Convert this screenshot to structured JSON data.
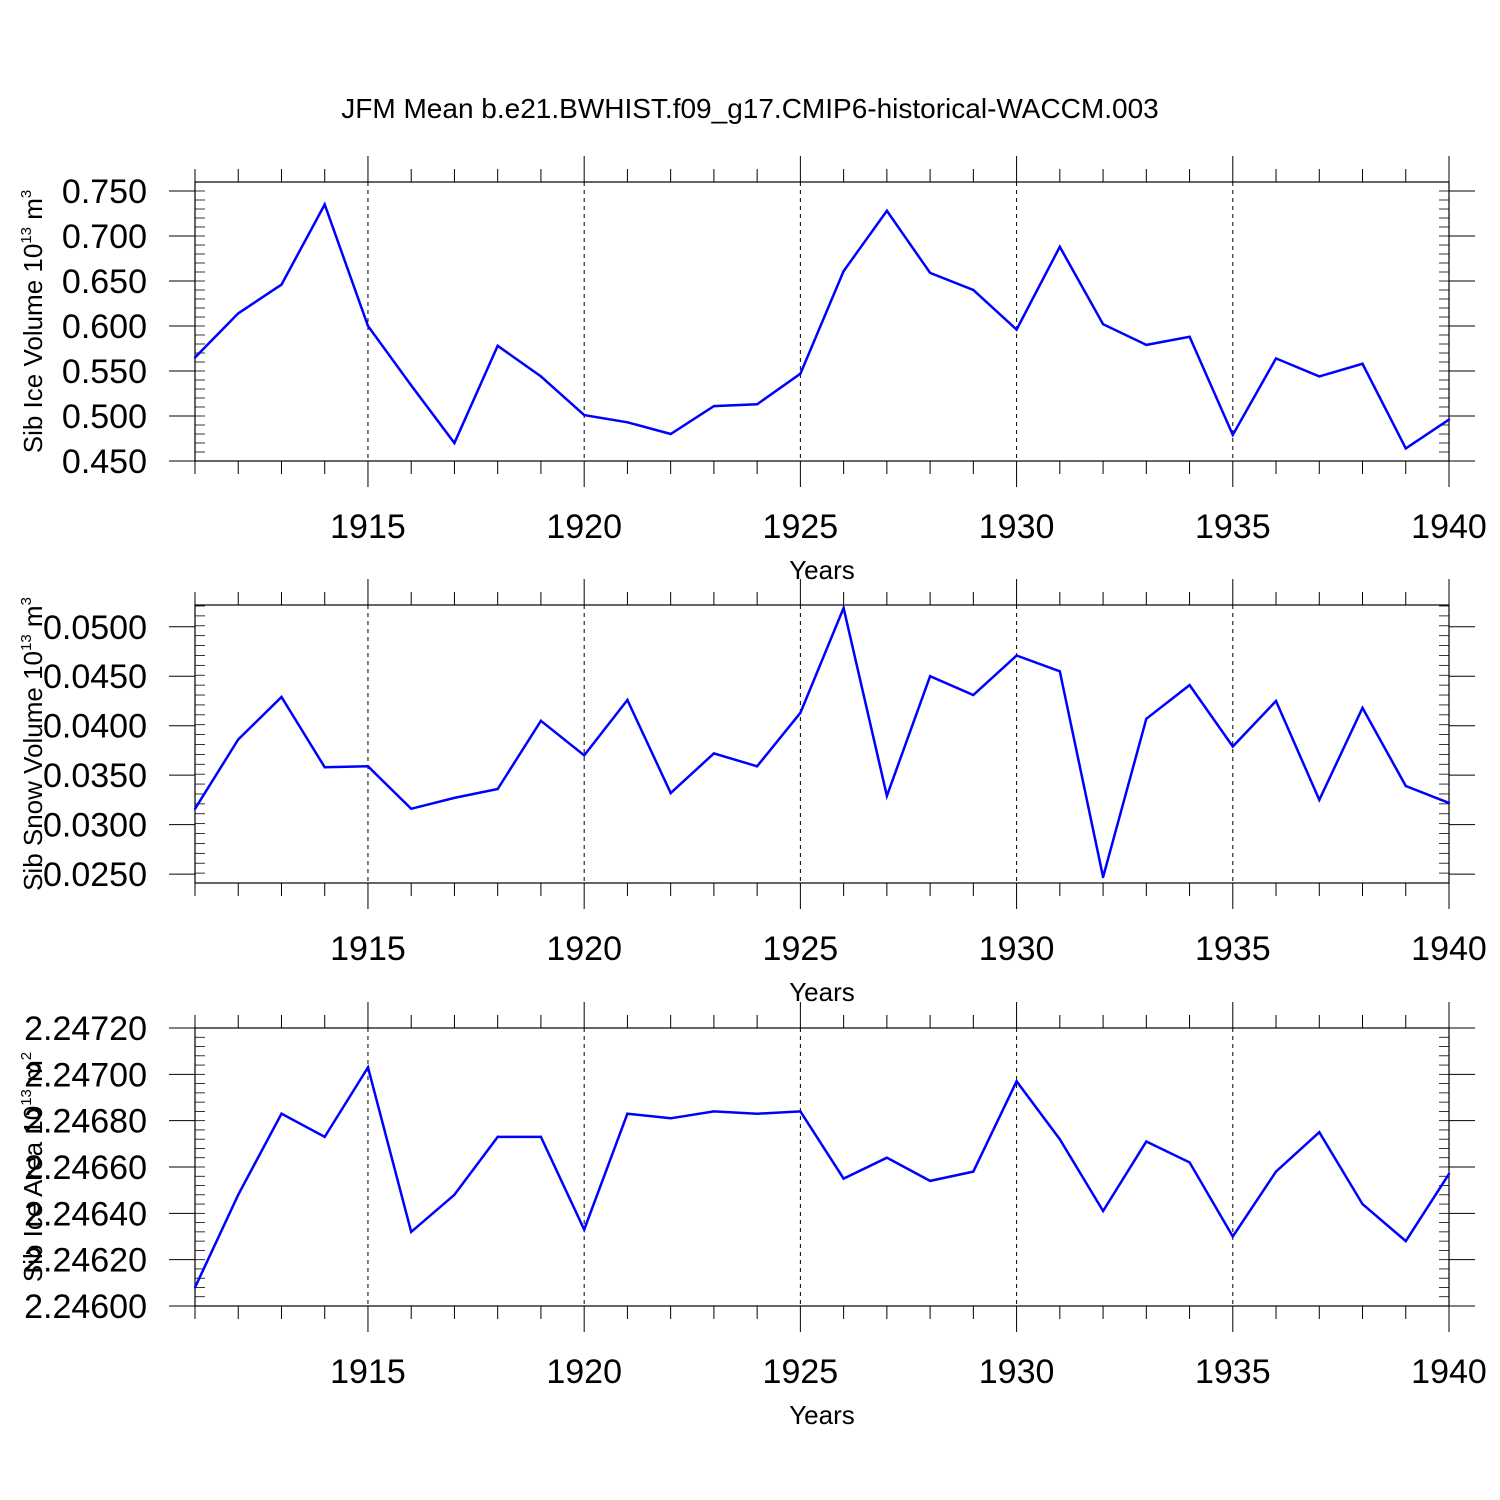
{
  "figure": {
    "title": "JFM Mean b.e21.BWHIST.f09_g17.CMIP6-historical-WACCM.003"
  },
  "chart_data": [
    {
      "type": "line",
      "title": "",
      "xlabel": "Years",
      "ylabel": "Sib Ice Volume 10",
      "ylabel_exp": "13",
      "ylabel_unit": "m",
      "ylabel_unit_exp": "3",
      "xlim": [
        1911,
        1940
      ],
      "ylim": [
        0.45,
        0.76
      ],
      "xticks": [
        1915,
        1920,
        1925,
        1930,
        1935,
        1940
      ],
      "yticks": [
        "0.450",
        "0.500",
        "0.550",
        "0.600",
        "0.650",
        "0.700",
        "0.750"
      ],
      "ytick_values": [
        0.45,
        0.5,
        0.55,
        0.6,
        0.65,
        0.7,
        0.75
      ],
      "ytick_minor_step": 0.01,
      "grid": "vertical dashed at major x ticks",
      "line_color": "#0000ff",
      "x": [
        1911,
        1912,
        1913,
        1914,
        1915,
        1916,
        1917,
        1918,
        1919,
        1920,
        1921,
        1922,
        1923,
        1924,
        1925,
        1926,
        1927,
        1928,
        1929,
        1930,
        1931,
        1932,
        1933,
        1934,
        1935,
        1936,
        1937,
        1938,
        1939,
        1940
      ],
      "values": [
        0.565,
        0.614,
        0.646,
        0.735,
        0.6,
        0.534,
        0.47,
        0.578,
        0.544,
        0.501,
        0.493,
        0.48,
        0.511,
        0.513,
        0.547,
        0.661,
        0.728,
        0.659,
        0.64,
        0.596,
        0.688,
        0.602,
        0.579,
        0.588,
        0.479,
        0.564,
        0.544,
        0.558,
        0.464,
        0.496
      ]
    },
    {
      "type": "line",
      "title": "",
      "xlabel": "Years",
      "ylabel": "Sib Snow Volume 10",
      "ylabel_exp": "13",
      "ylabel_unit": "m",
      "ylabel_unit_exp": "3",
      "xlim": [
        1911,
        1940
      ],
      "ylim": [
        0.0241,
        0.0522
      ],
      "xticks": [
        1915,
        1920,
        1925,
        1930,
        1935,
        1940
      ],
      "yticks": [
        "0.0250",
        "0.0300",
        "0.0350",
        "0.0400",
        "0.0450",
        "0.0500"
      ],
      "ytick_values": [
        0.025,
        0.03,
        0.035,
        0.04,
        0.045,
        0.05
      ],
      "ytick_minor_step": 0.001,
      "grid": "vertical dashed at major x ticks",
      "line_color": "#0000ff",
      "x": [
        1911,
        1912,
        1913,
        1914,
        1915,
        1916,
        1917,
        1918,
        1919,
        1920,
        1921,
        1922,
        1923,
        1924,
        1925,
        1926,
        1927,
        1928,
        1929,
        1930,
        1931,
        1932,
        1933,
        1934,
        1935,
        1936,
        1937,
        1938,
        1939,
        1940
      ],
      "values": [
        0.0316,
        0.0386,
        0.0429,
        0.0358,
        0.0359,
        0.0316,
        0.0327,
        0.0336,
        0.0405,
        0.037,
        0.0426,
        0.0332,
        0.0372,
        0.0359,
        0.0413,
        0.0519,
        0.0329,
        0.045,
        0.0431,
        0.0471,
        0.0455,
        0.0247,
        0.0407,
        0.0441,
        0.0379,
        0.0425,
        0.0325,
        0.0418,
        0.0339,
        0.0322
      ]
    },
    {
      "type": "line",
      "title": "",
      "xlabel": "Years",
      "ylabel": "Sib Ice Area 10",
      "ylabel_exp": "13",
      "ylabel_unit": "m",
      "ylabel_unit_exp": "2",
      "xlim": [
        1911,
        1940
      ],
      "ylim": [
        2.246,
        2.2472
      ],
      "xticks": [
        1915,
        1920,
        1925,
        1930,
        1935,
        1940
      ],
      "yticks": [
        "2.24600",
        "2.24620",
        "2.24640",
        "2.24660",
        "2.24680",
        "2.24700",
        "2.24720"
      ],
      "ytick_values": [
        2.246,
        2.2462,
        2.2464,
        2.2466,
        2.2468,
        2.247,
        2.2472
      ],
      "ytick_minor_step": 4e-05,
      "grid": "vertical dashed at major x ticks",
      "line_color": "#0000ff",
      "x": [
        1911,
        1912,
        1913,
        1914,
        1915,
        1916,
        1917,
        1918,
        1919,
        1920,
        1921,
        1922,
        1923,
        1924,
        1925,
        1926,
        1927,
        1928,
        1929,
        1930,
        1931,
        1932,
        1933,
        1934,
        1935,
        1936,
        1937,
        1938,
        1939,
        1940
      ],
      "values": [
        2.24608,
        2.24648,
        2.24683,
        2.24673,
        2.24703,
        2.24632,
        2.24648,
        2.24673,
        2.24673,
        2.24633,
        2.24683,
        2.24681,
        2.24684,
        2.24683,
        2.24684,
        2.24655,
        2.24664,
        2.24654,
        2.24658,
        2.24697,
        2.24672,
        2.24641,
        2.24671,
        2.24662,
        2.2463,
        2.24658,
        2.24675,
        2.24644,
        2.24628,
        2.24657
      ]
    }
  ]
}
